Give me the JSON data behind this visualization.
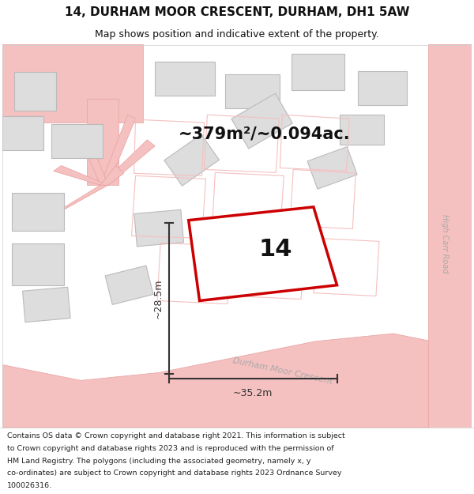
{
  "title_line1": "14, DURHAM MOOR CRESCENT, DURHAM, DH1 5AW",
  "title_line2": "Map shows position and indicative extent of the property.",
  "area_text": "~379m²/~0.094ac.",
  "label_number": "14",
  "dim_vertical": "~28.5m",
  "dim_horizontal": "~35.2m",
  "road_label1": "Durham Moor Crescent",
  "road_label2": "High Carr Road",
  "footer_lines": [
    "Contains OS data © Crown copyright and database right 2021. This information is subject",
    "to Crown copyright and database rights 2023 and is reproduced with the permission of",
    "HM Land Registry. The polygons (including the associated geometry, namely x, y",
    "co-ordinates) are subject to Crown copyright and database rights 2023 Ordnance Survey",
    "100026316."
  ],
  "map_bg": "#ffffff",
  "road_color": "#f5c0c0",
  "road_edge": "#e8a0a0",
  "building_color": "#dddddd",
  "building_edge": "#bbbbbb",
  "highlight_color": "#cc0000",
  "highlight_fill": "#ffffff",
  "dim_color": "#333333",
  "text_color": "#111111",
  "road_text_color": "#aaaaaa",
  "title_fontsize": 11,
  "subtitle_fontsize": 9,
  "area_fontsize": 15,
  "label_fontsize": 22,
  "dim_fontsize": 9,
  "road_fontsize": 8,
  "footer_fontsize": 6.8
}
